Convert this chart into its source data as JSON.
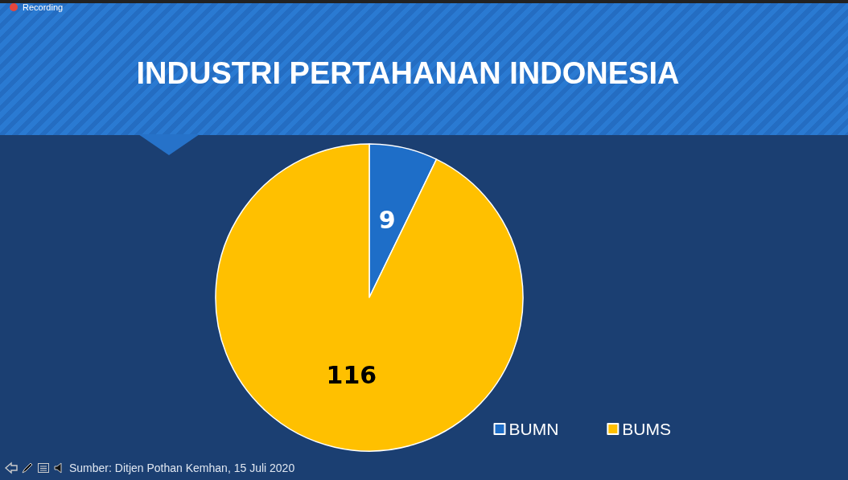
{
  "chart_data": {
    "type": "pie",
    "title": "INDUSTRI PERTAHANAN INDONESIA",
    "categories": [
      "BUMN",
      "BUMS"
    ],
    "values": [
      9,
      116
    ],
    "colors": [
      "#1e6ec8",
      "#ffc000"
    ],
    "data_labels": true,
    "legend": "bottom right",
    "annotations": [
      "Sumber: Ditjen Pothan Kemhan, 15 Juli 2020",
      "Recording"
    ]
  }
}
